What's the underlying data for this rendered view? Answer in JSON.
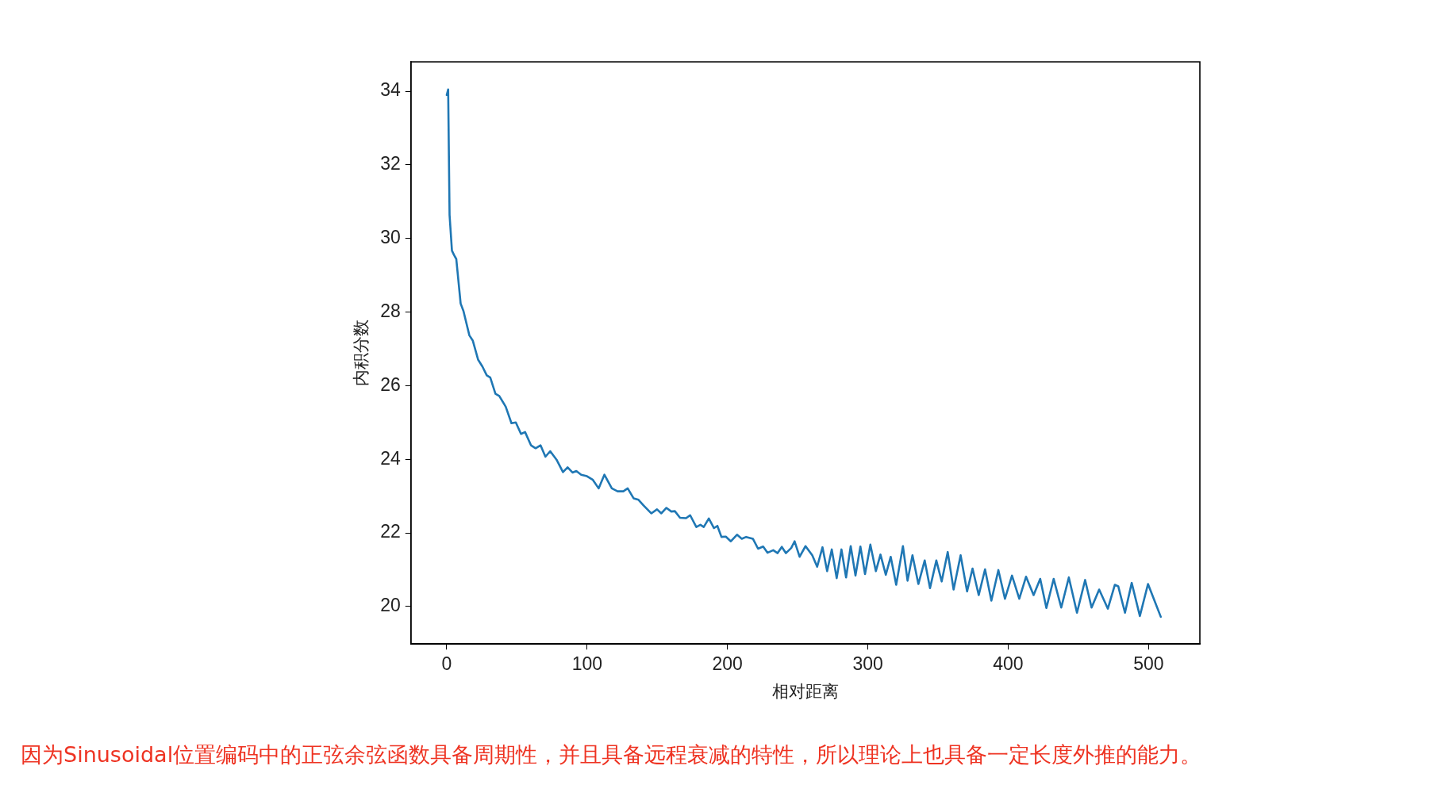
{
  "chart_data": {
    "type": "line",
    "xlabel": "相对距离",
    "ylabel": "内积分数",
    "xlim": [
      -25.55,
      536.55
    ],
    "xticks": [
      0,
      100,
      200,
      300,
      400,
      500
    ],
    "ylim": [
      18.98,
      34.8
    ],
    "yticks": [
      20,
      22,
      24,
      26,
      28,
      30,
      32,
      34
    ],
    "grid": false,
    "legend": false,
    "marker": "none",
    "line_style": "solid",
    "annotations": [
      "因为Sinusoidal位置编码中的正弦余弦函数具备周期性，并且具备远程衰减的特性，所以理论上也具备一定长度外推的能力。"
    ],
    "x": [
      0,
      1,
      2,
      3.7,
      5.2,
      6.8,
      9.9,
      11.9,
      16.1,
      18.6,
      22.3,
      25.4,
      28.5,
      31,
      34.7,
      37.4,
      42,
      46.1,
      49.2,
      52.9,
      55.8,
      60,
      63.3,
      66.8,
      70.3,
      73.7,
      78.2,
      82.8,
      86.1,
      89.6,
      92.3,
      95.8,
      99.9,
      104.1,
      108.2,
      112.3,
      117.6,
      121.7,
      125.8,
      128.9,
      133.1,
      136.6,
      140.3,
      145.7,
      149.8,
      152.9,
      156.5,
      160,
      162.5,
      166.2,
      170.5,
      173.4,
      177.8,
      180.7,
      183.1,
      186.7,
      190.4,
      192.8,
      195.7,
      198.8,
      202.4,
      206.8,
      210.2,
      213.3,
      218.1,
      221.8,
      225.4,
      228.5,
      232.6,
      235.7,
      238.7,
      241.6,
      245.4,
      247.8,
      251.4,
      255.6,
      260.4,
      263.9,
      267.7,
      271,
      274.3,
      277.8,
      281.2,
      284.5,
      287.8,
      291.2,
      294.7,
      298,
      301.8,
      305.7,
      309,
      312.8,
      316.3,
      320.2,
      325,
      328.3,
      331.8,
      336,
      340.5,
      344.3,
      348.8,
      352.6,
      356.9,
      361.1,
      366.1,
      370.7,
      374.6,
      379,
      383.5,
      388,
      393,
      397.7,
      402.7,
      407.9,
      412.7,
      418.1,
      422.8,
      427.2,
      432.4,
      437.8,
      443.2,
      449,
      454.8,
      459.4,
      464.8,
      471,
      476,
      478.4,
      483.2,
      488,
      493.8,
      499.6,
      508.7
    ],
    "series": [
      {
        "color": "#1f77b4",
        "values": [
          33.9,
          34.05,
          30.64,
          29.67,
          29.55,
          29.44,
          28.23,
          28.03,
          27.37,
          27.22,
          26.71,
          26.52,
          26.28,
          26.22,
          25.78,
          25.72,
          25.43,
          24.98,
          25.0,
          24.69,
          24.74,
          24.38,
          24.3,
          24.38,
          24.07,
          24.22,
          23.99,
          23.65,
          23.78,
          23.64,
          23.68,
          23.58,
          23.54,
          23.44,
          23.21,
          23.58,
          23.21,
          23.13,
          23.13,
          23.21,
          22.94,
          22.9,
          22.74,
          22.53,
          22.64,
          22.53,
          22.68,
          22.58,
          22.59,
          22.41,
          22.4,
          22.48,
          22.16,
          22.22,
          22.16,
          22.39,
          22.13,
          22.19,
          21.89,
          21.9,
          21.77,
          21.95,
          21.84,
          21.89,
          21.84,
          21.57,
          21.63,
          21.46,
          21.53,
          21.45,
          21.62,
          21.45,
          21.59,
          21.77,
          21.35,
          21.64,
          21.39,
          21.08,
          21.61,
          20.96,
          21.55,
          20.77,
          21.55,
          20.79,
          21.64,
          20.84,
          21.63,
          20.88,
          21.68,
          20.96,
          21.41,
          20.86,
          21.35,
          20.59,
          21.64,
          20.7,
          21.39,
          20.61,
          21.25,
          20.5,
          21.25,
          20.68,
          21.48,
          20.46,
          21.39,
          20.41,
          21.03,
          20.31,
          21.01,
          20.16,
          20.99,
          20.21,
          20.84,
          20.21,
          20.81,
          20.31,
          20.75,
          19.96,
          20.75,
          19.97,
          20.79,
          19.83,
          20.72,
          19.97,
          20.46,
          19.94,
          20.59,
          20.55,
          19.83,
          20.64,
          19.74,
          20.61,
          19.72
        ]
      }
    ]
  }
}
